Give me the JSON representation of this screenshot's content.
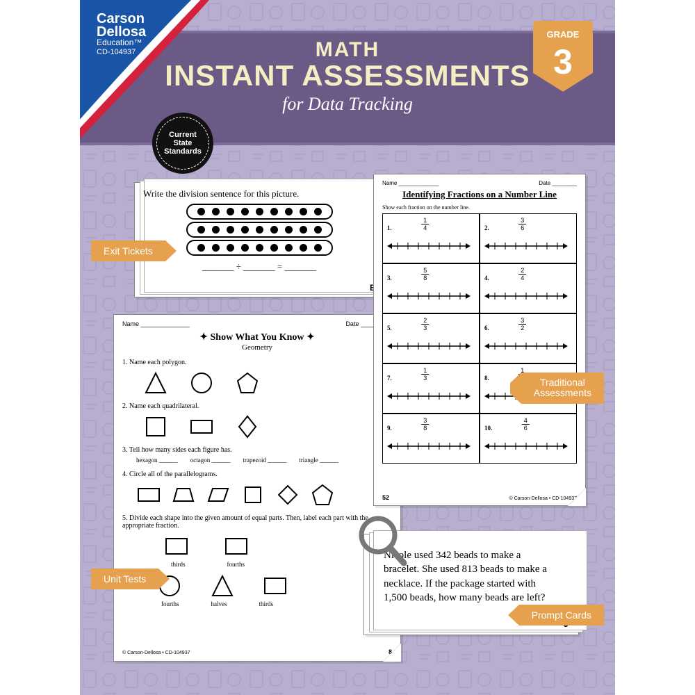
{
  "brand": {
    "l1": "Carson",
    "l2": "Dellosa",
    "l3": "Education™",
    "l4": "CD-104937"
  },
  "title": {
    "t1": "MATH",
    "t2": "INSTANT ASSESSMENTS",
    "t3": "for Data Tracking"
  },
  "grade": {
    "label": "GRADE",
    "num": "3"
  },
  "standards": "Current\nState\nStandards",
  "tags": {
    "exit": "Exit Tickets",
    "unit": "Unit Tests",
    "trad": "Traditional\nAssessments",
    "prompt": "Prompt Cards"
  },
  "exit": {
    "prompt": "Write the division sentence for this picture.",
    "dots_per_row": 9,
    "rows": 3,
    "eq": "_______ ÷ _______ = _______",
    "letter": "E"
  },
  "geo": {
    "name": "Name ______________",
    "date": "Date _________",
    "title": "Show What You Know",
    "sub": "Geometry",
    "q1": "1.  Name each polygon.",
    "q2": "2.  Name each quadrilateral.",
    "q3": "3.  Tell how many sides each figure has.",
    "q3_items": [
      "hexagon ______",
      "octagon ______",
      "trapezoid ______",
      "triangle ______"
    ],
    "q4": "4.  Circle all of the parallelograms.",
    "q5": "5.  Divide each shape into the given amount of equal parts. Then, label each part with the appropriate fraction.",
    "q5_row1": [
      "thirds",
      "fourths"
    ],
    "q5_row2": [
      "fourths",
      "halves",
      "thirds"
    ],
    "copyright": "© Carson-Dellosa • CD-104937",
    "page": "8"
  },
  "nl": {
    "name": "Name _____________",
    "date": "Date ________",
    "title": "Identifying Fractions on a Number Line",
    "inst": "Show each fraction on the number line.",
    "items": [
      {
        "n": "1.",
        "num": "1",
        "den": "4"
      },
      {
        "n": "2.",
        "num": "3",
        "den": "6"
      },
      {
        "n": "3.",
        "num": "5",
        "den": "8"
      },
      {
        "n": "4.",
        "num": "2",
        "den": "4"
      },
      {
        "n": "5.",
        "num": "2",
        "den": "3"
      },
      {
        "n": "6.",
        "num": "3",
        "den": "2"
      },
      {
        "n": "7.",
        "num": "1",
        "den": "3"
      },
      {
        "n": "8.",
        "num": "1",
        "den": "6"
      },
      {
        "n": "9.",
        "num": "3",
        "den": "8"
      },
      {
        "n": "10.",
        "num": "4",
        "den": "6"
      }
    ],
    "page": "52",
    "copyright": "© Carson-Dellosa • CD-104937"
  },
  "promptcard": {
    "text": "Nicole used 342 beads to make a bracelet. She used 813 beads to make a necklace. If the package started with 1,500 beads, how many beads are left?",
    "letter": "J"
  },
  "colors": {
    "bg": "#b8aed0",
    "band": "#6b5a85",
    "accent": "#e6a14f",
    "cream": "#f5eec2",
    "logo_blue": "#1954a6",
    "logo_red": "#d4213c"
  }
}
